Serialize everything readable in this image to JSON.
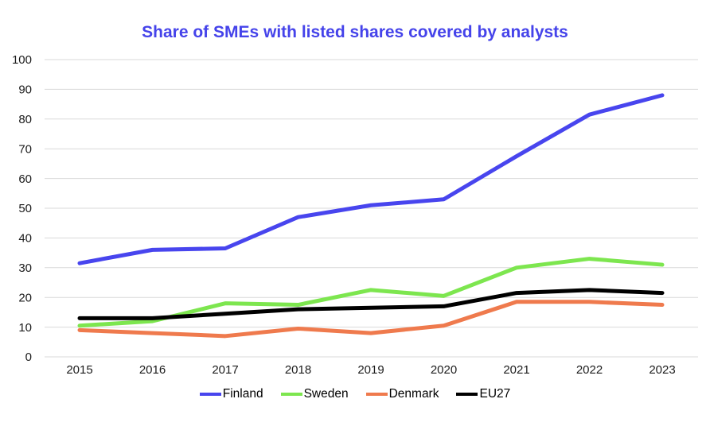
{
  "chart_data": {
    "type": "line",
    "title": "Share of SMEs with listed shares covered by analysts",
    "title_color": "#4543ea",
    "x": [
      "2015",
      "2016",
      "2017",
      "2018",
      "2019",
      "2020",
      "2021",
      "2022",
      "2023"
    ],
    "series": [
      {
        "name": "Finland",
        "color": "#4845ee",
        "values": [
          31.5,
          36,
          36.5,
          47,
          51,
          53,
          67.5,
          81.5,
          88
        ]
      },
      {
        "name": "Sweden",
        "color": "#7de64f",
        "values": [
          10.5,
          12,
          18,
          17.5,
          22.5,
          20.5,
          30,
          33,
          31
        ]
      },
      {
        "name": "Denmark",
        "color": "#ef7a4d",
        "values": [
          9,
          8,
          7,
          9.5,
          8,
          10.5,
          18.5,
          18.5,
          17.5
        ]
      },
      {
        "name": "EU27",
        "color": "#000000",
        "values": [
          13,
          13,
          14.5,
          16,
          16.5,
          17,
          21.5,
          22.5,
          21.5
        ]
      }
    ],
    "ylim": [
      0,
      100
    ],
    "ytick_step": 10,
    "yticks": [
      0,
      10,
      20,
      30,
      40,
      50,
      60,
      70,
      80,
      90,
      100
    ],
    "grid": true,
    "gridline_color": "#d9d9d9",
    "tick_label_color": "#1c1c1c",
    "legend_position": "bottom",
    "legend_labels": [
      "Finland",
      "Sweden",
      "Denmark",
      "EU27"
    ]
  }
}
